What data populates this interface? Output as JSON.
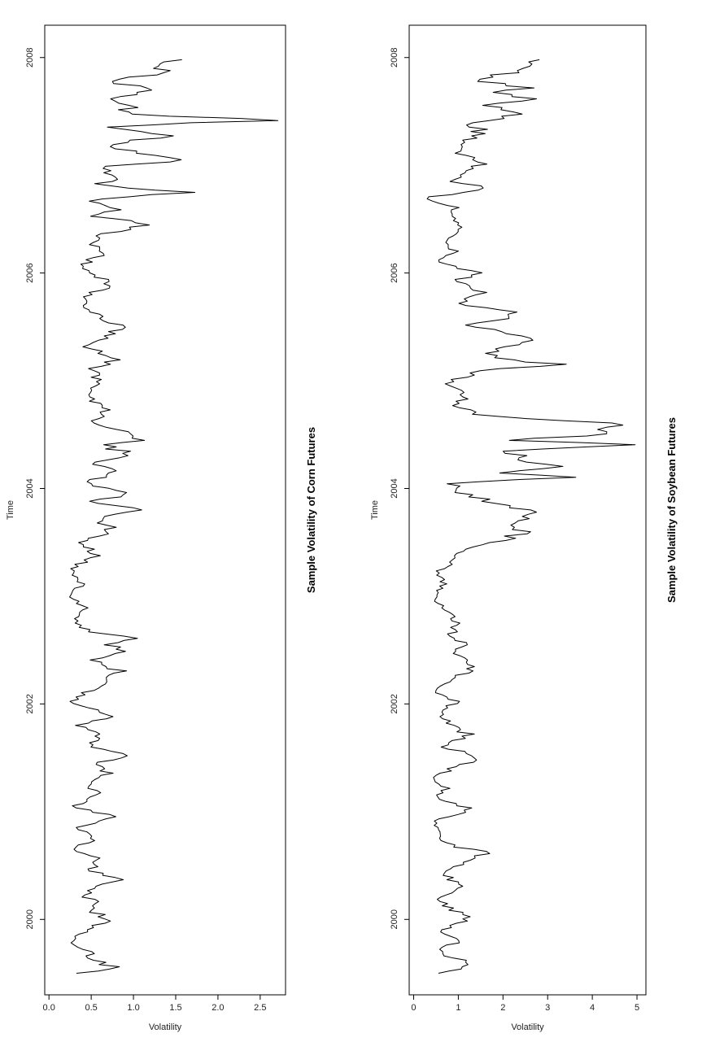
{
  "chart_data": [
    {
      "type": "line",
      "title": "Sample Volatility of Corn Futures",
      "xlabel": "Time",
      "ylabel": "Volatility",
      "xlim": [
        1999.3,
        2008.3
      ],
      "ylim": [
        -0.05,
        2.8
      ],
      "x_ticks": [
        2000,
        2002,
        2004,
        2006,
        2008
      ],
      "y_ticks": [
        0.0,
        0.5,
        1.0,
        1.5,
        2.0,
        2.5
      ],
      "y_tick_labels": [
        "0.0",
        "0.5",
        "1.0",
        "1.5",
        "2.0",
        "2.5"
      ],
      "x_start": 1999.5,
      "x_end": 2007.98,
      "seed": 7,
      "anchors": [
        [
          1999.5,
          0.35
        ],
        [
          1999.55,
          0.78
        ],
        [
          1999.62,
          0.55
        ],
        [
          1999.7,
          0.45
        ],
        [
          1999.78,
          0.25
        ],
        [
          1999.85,
          0.32
        ],
        [
          1999.92,
          0.52
        ],
        [
          2000.0,
          0.7
        ],
        [
          2000.08,
          0.5
        ],
        [
          2000.15,
          0.62
        ],
        [
          2000.22,
          0.4
        ],
        [
          2000.3,
          0.55
        ],
        [
          2000.38,
          0.88
        ],
        [
          2000.45,
          0.45
        ],
        [
          2000.55,
          0.6
        ],
        [
          2000.65,
          0.3
        ],
        [
          2000.75,
          0.55
        ],
        [
          2000.85,
          0.32
        ],
        [
          2000.95,
          0.75
        ],
        [
          2001.05,
          0.28
        ],
        [
          2001.15,
          0.6
        ],
        [
          2001.25,
          0.45
        ],
        [
          2001.35,
          0.7
        ],
        [
          2001.45,
          0.55
        ],
        [
          2001.52,
          1.05
        ],
        [
          2001.6,
          0.45
        ],
        [
          2001.7,
          0.62
        ],
        [
          2001.8,
          0.35
        ],
        [
          2001.9,
          0.75
        ],
        [
          2002.0,
          0.25
        ],
        [
          2002.1,
          0.4
        ],
        [
          2002.2,
          0.7
        ],
        [
          2002.3,
          0.88
        ],
        [
          2002.4,
          0.5
        ],
        [
          2002.5,
          0.95
        ],
        [
          2002.55,
          0.7
        ],
        [
          2002.6,
          1.05
        ],
        [
          2002.68,
          0.45
        ],
        [
          2002.78,
          0.3
        ],
        [
          2002.9,
          0.45
        ],
        [
          2003.0,
          0.22
        ],
        [
          2003.12,
          0.4
        ],
        [
          2003.25,
          0.25
        ],
        [
          2003.38,
          0.55
        ],
        [
          2003.5,
          0.4
        ],
        [
          2003.62,
          0.75
        ],
        [
          2003.72,
          0.6
        ],
        [
          2003.8,
          1.0
        ],
        [
          2003.88,
          0.55
        ],
        [
          2003.95,
          0.9
        ],
        [
          2004.05,
          0.45
        ],
        [
          2004.15,
          0.75
        ],
        [
          2004.25,
          0.55
        ],
        [
          2004.32,
          0.95
        ],
        [
          2004.4,
          0.65
        ],
        [
          2004.45,
          1.05
        ],
        [
          2004.55,
          0.8
        ],
        [
          2004.62,
          0.5
        ],
        [
          2004.72,
          0.7
        ],
        [
          2004.85,
          0.45
        ],
        [
          2004.98,
          0.62
        ],
        [
          2005.1,
          0.5
        ],
        [
          2005.2,
          0.8
        ],
        [
          2005.32,
          0.45
        ],
        [
          2005.42,
          0.7
        ],
        [
          2005.5,
          0.92
        ],
        [
          2005.58,
          0.6
        ],
        [
          2005.68,
          0.45
        ],
        [
          2005.78,
          0.38
        ],
        [
          2005.88,
          0.75
        ],
        [
          2005.98,
          0.55
        ],
        [
          2006.08,
          0.4
        ],
        [
          2006.18,
          0.65
        ],
        [
          2006.28,
          0.5
        ],
        [
          2006.38,
          0.72
        ],
        [
          2006.45,
          1.25
        ],
        [
          2006.52,
          0.55
        ],
        [
          2006.6,
          0.8
        ],
        [
          2006.68,
          0.5
        ],
        [
          2006.75,
          1.55
        ],
        [
          2006.82,
          0.6
        ],
        [
          2006.9,
          0.82
        ],
        [
          2006.98,
          0.55
        ],
        [
          2007.05,
          1.65
        ],
        [
          2007.12,
          0.95
        ],
        [
          2007.2,
          0.7
        ],
        [
          2007.28,
          1.55
        ],
        [
          2007.35,
          0.6
        ],
        [
          2007.42,
          2.7
        ],
        [
          2007.48,
          0.8
        ],
        [
          2007.55,
          1.0
        ],
        [
          2007.62,
          0.7
        ],
        [
          2007.7,
          1.35
        ],
        [
          2007.78,
          0.65
        ],
        [
          2007.85,
          1.4
        ],
        [
          2007.92,
          1.3
        ],
        [
          2007.98,
          1.5
        ]
      ]
    },
    {
      "type": "line",
      "title": "Sample Volatility of Soybean Futures",
      "xlabel": "Time",
      "ylabel": "Volatility",
      "xlim": [
        1999.3,
        2008.3
      ],
      "ylim": [
        -0.1,
        5.2
      ],
      "x_ticks": [
        2000,
        2002,
        2004,
        2006,
        2008
      ],
      "y_ticks": [
        0,
        1,
        2,
        3,
        4,
        5
      ],
      "y_tick_labels": [
        "0",
        "1",
        "2",
        "3",
        "4",
        "5"
      ],
      "x_start": 1999.5,
      "x_end": 2007.98,
      "seed": 13,
      "anchors": [
        [
          1999.5,
          0.6
        ],
        [
          1999.58,
          1.4
        ],
        [
          1999.65,
          0.8
        ],
        [
          1999.72,
          0.55
        ],
        [
          1999.8,
          1.0
        ],
        [
          1999.9,
          0.6
        ],
        [
          2000.0,
          1.3
        ],
        [
          2000.1,
          0.8
        ],
        [
          2000.2,
          0.55
        ],
        [
          2000.3,
          1.05
        ],
        [
          2000.42,
          0.7
        ],
        [
          2000.55,
          1.25
        ],
        [
          2000.62,
          1.55
        ],
        [
          2000.7,
          0.75
        ],
        [
          2000.8,
          0.55
        ],
        [
          2000.92,
          0.45
        ],
        [
          2001.02,
          1.25
        ],
        [
          2001.12,
          0.5
        ],
        [
          2001.22,
          0.75
        ],
        [
          2001.32,
          0.4
        ],
        [
          2001.42,
          1.0
        ],
        [
          2001.5,
          1.5
        ],
        [
          2001.6,
          0.7
        ],
        [
          2001.72,
          1.2
        ],
        [
          2001.82,
          0.8
        ],
        [
          2001.92,
          0.55
        ],
        [
          2002.02,
          0.95
        ],
        [
          2002.12,
          0.5
        ],
        [
          2002.22,
          0.8
        ],
        [
          2002.35,
          1.4
        ],
        [
          2002.45,
          0.9
        ],
        [
          2002.55,
          1.2
        ],
        [
          2002.65,
          0.85
        ],
        [
          2002.75,
          1.0
        ],
        [
          2002.88,
          0.65
        ],
        [
          2003.0,
          0.45
        ],
        [
          2003.12,
          0.7
        ],
        [
          2003.22,
          0.5
        ],
        [
          2003.35,
          1.0
        ],
        [
          2003.45,
          1.2
        ],
        [
          2003.52,
          1.95
        ],
        [
          2003.6,
          2.45
        ],
        [
          2003.7,
          2.2
        ],
        [
          2003.78,
          2.5
        ],
        [
          2003.88,
          1.7
        ],
        [
          2003.95,
          1.1
        ],
        [
          2004.05,
          0.85
        ],
        [
          2004.1,
          3.7
        ],
        [
          2004.15,
          1.5
        ],
        [
          2004.2,
          3.55
        ],
        [
          2004.26,
          2.4
        ],
        [
          2004.3,
          2.9
        ],
        [
          2004.35,
          1.8
        ],
        [
          2004.4,
          4.9
        ],
        [
          2004.45,
          2.3
        ],
        [
          2004.5,
          4.2
        ],
        [
          2004.55,
          3.6
        ],
        [
          2004.6,
          4.9
        ],
        [
          2004.68,
          1.4
        ],
        [
          2004.78,
          0.95
        ],
        [
          2004.88,
          1.2
        ],
        [
          2004.98,
          0.75
        ],
        [
          2005.1,
          1.6
        ],
        [
          2005.15,
          3.15
        ],
        [
          2005.25,
          1.5
        ],
        [
          2005.35,
          2.6
        ],
        [
          2005.42,
          2.2
        ],
        [
          2005.52,
          1.3
        ],
        [
          2005.62,
          2.3
        ],
        [
          2005.72,
          1.0
        ],
        [
          2005.82,
          1.7
        ],
        [
          2005.92,
          0.9
        ],
        [
          2006.0,
          1.4
        ],
        [
          2006.1,
          0.55
        ],
        [
          2006.2,
          0.9
        ],
        [
          2006.3,
          0.7
        ],
        [
          2006.4,
          1.1
        ],
        [
          2006.5,
          0.85
        ],
        [
          2006.6,
          0.95
        ],
        [
          2006.7,
          0.2
        ],
        [
          2006.78,
          1.8
        ],
        [
          2006.85,
          0.9
        ],
        [
          2006.95,
          1.05
        ],
        [
          2007.02,
          1.7
        ],
        [
          2007.12,
          0.9
        ],
        [
          2007.22,
          1.2
        ],
        [
          2007.32,
          1.5
        ],
        [
          2007.4,
          1.3
        ],
        [
          2007.48,
          2.45
        ],
        [
          2007.55,
          1.6
        ],
        [
          2007.62,
          2.5
        ],
        [
          2007.68,
          1.9
        ],
        [
          2007.72,
          2.6
        ],
        [
          2007.78,
          1.4
        ],
        [
          2007.85,
          2.1
        ],
        [
          2007.92,
          2.75
        ],
        [
          2007.98,
          2.65
        ]
      ]
    }
  ]
}
